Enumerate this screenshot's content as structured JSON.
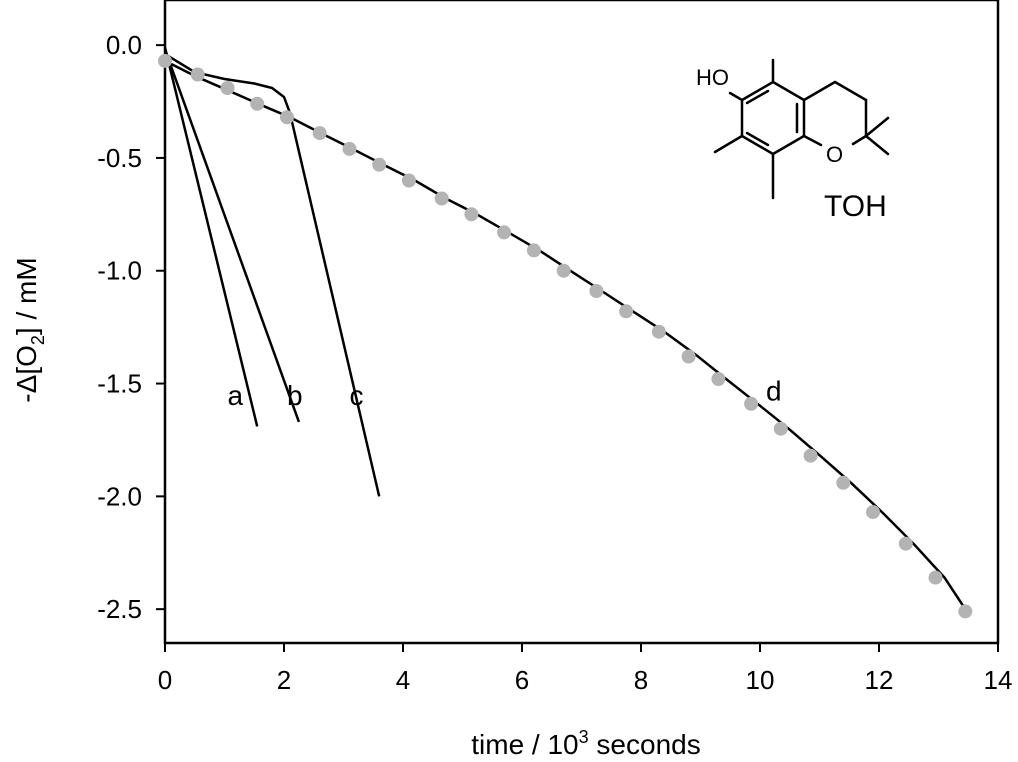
{
  "chart_data": {
    "type": "line",
    "xlabel": {
      "prefix": "time / 10",
      "sup": "3",
      "suffix": " seconds"
    },
    "ylabel": {
      "prefix": "-Δ[O",
      "sub": "2",
      "suffix": "] / mM"
    },
    "xlim": [
      0,
      14
    ],
    "ylim": [
      -2.65,
      0.2
    ],
    "x_ticks": [
      0,
      2,
      4,
      6,
      8,
      10,
      12,
      14
    ],
    "y_ticks": [
      0.0,
      -0.5,
      -1.0,
      -1.5,
      -2.0,
      -2.5
    ],
    "y_tick_labels": [
      "0.0",
      "-0.5",
      "-1.0",
      "-1.5",
      "-2.0",
      "-2.5"
    ],
    "grid": false,
    "series": [
      {
        "name": "a",
        "style": "line",
        "color": "#000000",
        "x": [
          0,
          1.55
        ],
        "y": [
          -0.01,
          -1.69
        ]
      },
      {
        "name": "b",
        "style": "line",
        "color": "#000000",
        "x": [
          0,
          2.25
        ],
        "y": [
          -0.02,
          -1.67
        ]
      },
      {
        "name": "c",
        "style": "line",
        "color": "#000000",
        "x": [
          0,
          0.5,
          1.0,
          1.5,
          1.8,
          2.0,
          2.1,
          3.6
        ],
        "y": [
          -0.04,
          -0.12,
          -0.15,
          -0.17,
          -0.19,
          -0.23,
          -0.3,
          -2.0
        ]
      },
      {
        "name": "d",
        "style": "line",
        "color": "#000000",
        "x": [
          0,
          0.53,
          1.05,
          1.57,
          2.1,
          2.62,
          3.15,
          3.67,
          4.2,
          4.72,
          5.24,
          5.77,
          6.29,
          6.81,
          7.34,
          7.86,
          8.39,
          8.91,
          9.43,
          9.96,
          10.48,
          11.01,
          11.53,
          12.05,
          12.58,
          13.1,
          13.5
        ],
        "y": [
          -0.07,
          -0.14,
          -0.2,
          -0.26,
          -0.32,
          -0.39,
          -0.46,
          -0.53,
          -0.6,
          -0.68,
          -0.75,
          -0.83,
          -0.91,
          -1.0,
          -1.09,
          -1.18,
          -1.27,
          -1.37,
          -1.48,
          -1.59,
          -1.7,
          -1.82,
          -1.94,
          -2.07,
          -2.21,
          -2.36,
          -2.52
        ]
      },
      {
        "name": "d-points",
        "style": "markers",
        "color": "#b3b3b3",
        "x": [
          0,
          0.55,
          1.05,
          1.55,
          2.05,
          2.6,
          3.1,
          3.6,
          4.1,
          4.65,
          5.15,
          5.7,
          6.2,
          6.7,
          7.25,
          7.75,
          8.3,
          8.8,
          9.3,
          9.85,
          10.35,
          10.85,
          11.4,
          11.9,
          12.45,
          12.95,
          13.45
        ],
        "y": [
          -0.07,
          -0.13,
          -0.19,
          -0.26,
          -0.32,
          -0.39,
          -0.46,
          -0.53,
          -0.6,
          -0.68,
          -0.75,
          -0.83,
          -0.91,
          -1.0,
          -1.09,
          -1.18,
          -1.27,
          -1.38,
          -1.48,
          -1.59,
          -1.7,
          -1.82,
          -1.94,
          -2.07,
          -2.21,
          -2.36,
          -2.51
        ]
      }
    ],
    "curve_labels": [
      {
        "text": "a",
        "x": 1.05,
        "y": -1.55
      },
      {
        "text": "b",
        "x": 2.05,
        "y": -1.55
      },
      {
        "text": "c",
        "x": 3.1,
        "y": -1.55
      },
      {
        "text": "d",
        "x": 10.1,
        "y": -1.53
      }
    ],
    "inset": {
      "name": "TOH",
      "hydroxyl_label": "HO",
      "ring_oxygen_label": "O",
      "compound_label": "TOH"
    }
  }
}
